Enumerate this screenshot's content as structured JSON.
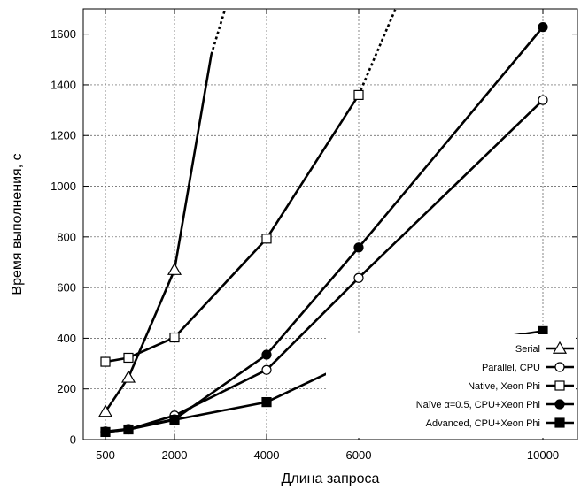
{
  "chart_data": {
    "type": "line",
    "xlabel": "Длина запроса",
    "ylabel": "Время выполнения, с",
    "xlim": [
      0,
      10500
    ],
    "ylim": [
      0,
      1700
    ],
    "xticks": [
      {
        "value": 500,
        "label": "500"
      },
      {
        "value": 2000,
        "label": "2000"
      },
      {
        "value": 4000,
        "label": "4000"
      },
      {
        "value": 6000,
        "label": "6000"
      },
      {
        "value": 10000,
        "label": "10000"
      }
    ],
    "yticks": [
      0,
      200,
      400,
      600,
      800,
      1000,
      1200,
      1400,
      1600
    ],
    "grid": true,
    "legend_position": "bottom-right",
    "series": [
      {
        "name": "Serial",
        "marker": "triangle-open",
        "points": [
          [
            500,
            110
          ],
          [
            1000,
            245
          ],
          [
            2000,
            670
          ],
          [
            2800,
            1520
          ]
        ],
        "extrapolated_to": [
          3100,
          1700
        ]
      },
      {
        "name": "Parallel, CPU",
        "marker": "circle-open",
        "points": [
          [
            500,
            30
          ],
          [
            1000,
            40
          ],
          [
            2000,
            95
          ],
          [
            4000,
            275
          ],
          [
            6000,
            638
          ],
          [
            10000,
            1340
          ]
        ]
      },
      {
        "name": "Native, Xeon Phi",
        "marker": "square-open",
        "points": [
          [
            500,
            307
          ],
          [
            1000,
            323
          ],
          [
            2000,
            403
          ],
          [
            4000,
            793
          ],
          [
            6000,
            1360
          ]
        ],
        "extrapolated_to": [
          6800,
          1700
        ]
      },
      {
        "name": "Naïve α=0.5, CPU+Xeon Phi",
        "marker": "circle-filled",
        "points": [
          [
            500,
            32
          ],
          [
            1000,
            42
          ],
          [
            2000,
            80
          ],
          [
            4000,
            335
          ],
          [
            6000,
            758
          ],
          [
            10000,
            1628
          ]
        ]
      },
      {
        "name": "Advanced, CPU+Xeon Phi",
        "marker": "square-filled",
        "points": [
          [
            500,
            30
          ],
          [
            1000,
            40
          ],
          [
            2000,
            78
          ],
          [
            4000,
            148
          ],
          [
            6000,
            320
          ],
          [
            10000,
            428
          ]
        ]
      }
    ]
  }
}
